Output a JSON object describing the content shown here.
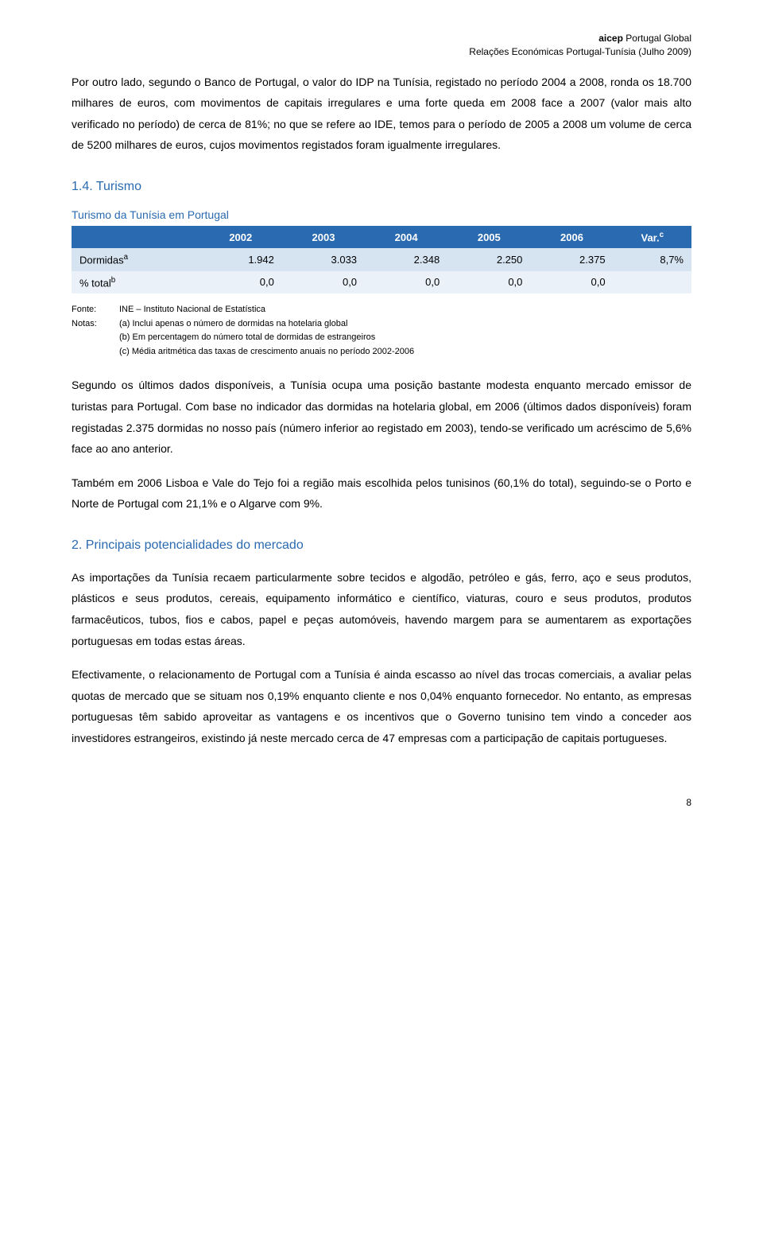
{
  "header": {
    "line1_prefix": "aicep",
    "line1_rest": " Portugal Global",
    "line2": "Relações Económicas Portugal-Tunísia (Julho 2009)"
  },
  "para1": "Por outro lado, segundo o Banco de Portugal, o valor do IDP na Tunísia, registado no período 2004 a 2008, ronda os 18.700 milhares de euros, com movimentos de capitais irregulares e uma forte queda em 2008 face a 2007 (valor mais alto verificado no período) de cerca de 81%; no que se refere ao IDE, temos para o período de 2005 a 2008 um volume de cerca de 5200 milhares de euros, cujos movimentos registados foram igualmente irregulares.",
  "heading_turismo": "1.4. Turismo",
  "table": {
    "title": "Turismo da Tunísia em Portugal",
    "columns": [
      "2002",
      "2003",
      "2004",
      "2005",
      "2006",
      "Var."
    ],
    "var_sup": "c",
    "header_bg": "#2a6ab0",
    "header_color": "#ffffff",
    "row_odd_bg": "#d6e4f2",
    "row_even_bg": "#ebf1f9",
    "rows": [
      {
        "label": "Dormidas",
        "sup": "a",
        "cells": [
          "1.942",
          "3.033",
          "2.348",
          "2.250",
          "2.375",
          "8,7%"
        ]
      },
      {
        "label": "  % total",
        "sup": "b",
        "cells": [
          "0,0",
          "0,0",
          "0,0",
          "0,0",
          "0,0",
          ""
        ]
      }
    ]
  },
  "notes": {
    "fonte_label": "Fonte:",
    "fonte_text": "INE – Instituto Nacional de Estatística",
    "notas_label": "Notas:",
    "lines": [
      "(a) Inclui apenas o número de dormidas na hotelaria global",
      "(b) Em percentagem do número total de dormidas de estrangeiros",
      "(c) Média aritmética das taxas de crescimento anuais no período 2002-2006"
    ]
  },
  "para2": "Segundo os últimos dados disponíveis, a Tunísia ocupa uma posição bastante modesta enquanto mercado emissor de turistas para Portugal. Com base no indicador das dormidas na hotelaria global, em 2006 (últimos dados disponíveis) foram registadas 2.375 dormidas no nosso país (número inferior ao registado em 2003), tendo-se verificado um acréscimo de 5,6% face ao ano anterior.",
  "para3": "Também em 2006 Lisboa e Vale do Tejo foi a região mais escolhida pelos tunisinos (60,1% do total), seguindo-se o Porto e Norte de Portugal com 21,1% e o Algarve com 9%.",
  "heading_section2": "2. Principais potencialidades do mercado",
  "para4": "As importações da Tunísia recaem particularmente sobre tecidos e algodão, petróleo e gás, ferro, aço e seus produtos, plásticos e seus produtos, cereais, equipamento informático e científico, viaturas, couro e seus produtos, produtos farmacêuticos, tubos, fios e cabos, papel e peças automóveis, havendo margem para se aumentarem as exportações portuguesas em todas estas áreas.",
  "para5": "Efectivamente, o relacionamento de Portugal com a Tunísia é ainda escasso ao nível das trocas comerciais, a avaliar pelas quotas de mercado que se situam nos 0,19% enquanto cliente e nos 0,04% enquanto fornecedor. No entanto, as empresas portuguesas têm sabido aproveitar as vantagens e os incentivos que o Governo tunisino tem vindo a conceder aos investidores estrangeiros, existindo já neste mercado cerca de 47 empresas com a participação de capitais portugueses.",
  "page_number": "8",
  "styles": {
    "accent_color": "#2a6ab0"
  }
}
